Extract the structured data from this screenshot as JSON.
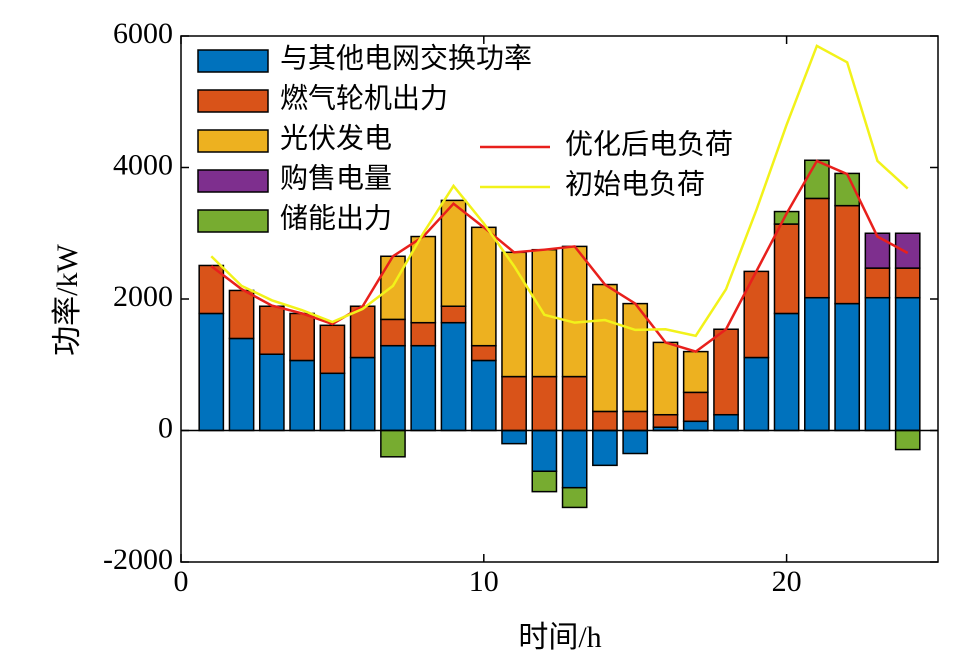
{
  "chart_data": {
    "type": "stacked-bar-line",
    "x": [
      1,
      2,
      3,
      4,
      5,
      6,
      7,
      8,
      9,
      10,
      11,
      12,
      13,
      14,
      15,
      16,
      17,
      18,
      19,
      20,
      21,
      22,
      23,
      24
    ],
    "series": [
      {
        "name": "与其他电网交换功率",
        "color": "#0072bd",
        "kind": "bar",
        "values": [
          1780,
          1400,
          1160,
          1065,
          870,
          1110,
          1290,
          1290,
          1640,
          1065,
          -200,
          -620,
          -870,
          -530,
          -350,
          50,
          140,
          240,
          1110,
          1780,
          2020,
          1930,
          2020,
          2020
        ]
      },
      {
        "name": "燃气轮机出力",
        "color": "#d95319",
        "kind": "bar",
        "values": [
          730,
          730,
          730,
          715,
          730,
          780,
          400,
          350,
          250,
          225,
          820,
          820,
          820,
          290,
          290,
          190,
          440,
          1300,
          1310,
          1360,
          1510,
          1490,
          450,
          450
        ]
      },
      {
        "name": "光伏发电",
        "color": "#edb120",
        "kind": "bar",
        "values": [
          0,
          0,
          0,
          0,
          0,
          0,
          960,
          1310,
          1610,
          1800,
          1890,
          1930,
          1980,
          1930,
          1640,
          1100,
          620,
          0,
          0,
          0,
          0,
          0,
          0,
          0
        ]
      },
      {
        "name": "购售电量",
        "color": "#7e2f8e",
        "kind": "bar",
        "values": [
          0,
          0,
          0,
          0,
          0,
          0,
          0,
          0,
          0,
          0,
          0,
          0,
          0,
          0,
          0,
          0,
          0,
          0,
          0,
          0,
          0,
          0,
          530,
          530
        ]
      },
      {
        "name": "储能出力",
        "color": "#77ac30",
        "kind": "bar",
        "values": [
          0,
          0,
          0,
          0,
          0,
          0,
          -400,
          0,
          0,
          0,
          0,
          -310,
          -300,
          0,
          0,
          0,
          0,
          0,
          0,
          190,
          580,
          490,
          0,
          -290
        ]
      },
      {
        "name": "优化后电负荷",
        "color": "#e8201c",
        "kind": "line",
        "values": [
          2500,
          2150,
          1900,
          1780,
          1620,
          1890,
          2650,
          2950,
          3450,
          3090,
          2710,
          2750,
          2800,
          2220,
          1930,
          1340,
          1200,
          1540,
          2420,
          3300,
          4100,
          3900,
          2950,
          2700
        ]
      },
      {
        "name": "初始电负荷",
        "color": "#f2f21a",
        "kind": "line",
        "values": [
          2650,
          2200,
          1980,
          1830,
          1650,
          1850,
          2200,
          3000,
          3720,
          3150,
          2500,
          1760,
          1640,
          1680,
          1530,
          1540,
          1440,
          2150,
          3350,
          4650,
          5850,
          5600,
          4100,
          3680
        ]
      }
    ],
    "xlabel": "时间/h",
    "ylabel": "功率/kW",
    "xlim": [
      0,
      25
    ],
    "ylim": [
      -2000,
      6000
    ],
    "xticks": [
      0,
      10,
      20
    ],
    "yticks": [
      -2000,
      0,
      2000,
      4000,
      6000
    ]
  }
}
